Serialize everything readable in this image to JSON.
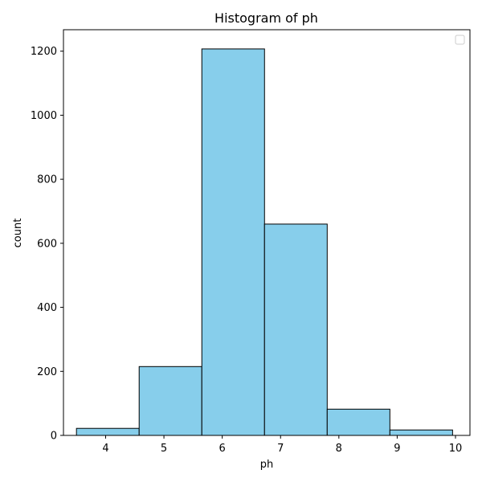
{
  "chart_data": {
    "type": "bar",
    "subtype": "histogram",
    "title": "Histogram of ph",
    "xlabel": "ph",
    "ylabel": "count",
    "bins": [
      {
        "start": 3.5,
        "end": 4.575,
        "count": 22
      },
      {
        "start": 4.575,
        "end": 5.65,
        "count": 215
      },
      {
        "start": 5.65,
        "end": 6.725,
        "count": 1207
      },
      {
        "start": 6.725,
        "end": 7.8,
        "count": 660
      },
      {
        "start": 7.8,
        "end": 8.875,
        "count": 82
      },
      {
        "start": 8.875,
        "end": 9.95,
        "count": 17
      }
    ],
    "xlim": [
      3.277,
      10.248
    ],
    "ylim": [
      0,
      1267
    ],
    "xticks": [
      4,
      5,
      6,
      7,
      8,
      9,
      10
    ],
    "yticks": [
      0,
      200,
      400,
      600,
      800,
      1000,
      1200
    ],
    "grid": false,
    "legend": {
      "placement": "top-right",
      "entries": []
    },
    "colors": {
      "bar_fill": "#87ceeb",
      "bar_edge": "#000000"
    }
  }
}
